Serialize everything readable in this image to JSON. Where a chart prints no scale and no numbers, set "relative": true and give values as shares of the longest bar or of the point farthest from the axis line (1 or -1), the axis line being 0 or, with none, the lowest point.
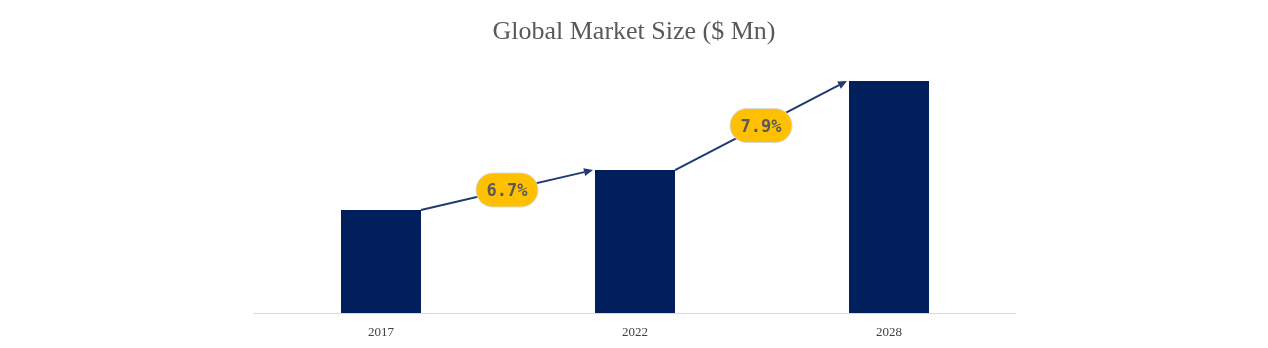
{
  "chart_data": {
    "type": "bar",
    "title": "Global Market Size ($ Mn)",
    "categories": [
      "2017",
      "2022",
      "2028"
    ],
    "values": [
      0.444,
      0.616,
      1
    ],
    "color": "#001f5c",
    "relative": true,
    "annotations": [
      "6.7%",
      "7.9%"
    ]
  }
}
